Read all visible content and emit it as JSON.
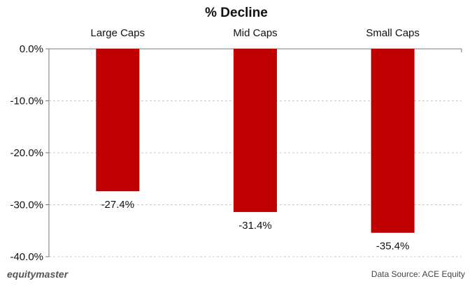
{
  "chart_data": {
    "type": "bar",
    "title": "% Decline",
    "categories": [
      "Large Caps",
      "Mid Caps",
      "Small Caps"
    ],
    "values": [
      -27.4,
      -31.4,
      -35.4
    ],
    "data_labels": [
      "-27.4%",
      "-31.4%",
      "-35.4%"
    ],
    "ylim": [
      -40,
      0
    ],
    "yticks": [
      0,
      -10,
      -20,
      -30,
      -40
    ],
    "ytick_labels": [
      "0.0%",
      "-10.0%",
      "-20.0%",
      "-30.0%",
      "-40.0%"
    ],
    "xlabel": "",
    "ylabel": "",
    "category_axis_position": "top",
    "grid": true,
    "bar_color": "#c00000"
  },
  "footer": {
    "logo_text": "equitymaster",
    "source_text": "Data Source: ACE Equity"
  }
}
